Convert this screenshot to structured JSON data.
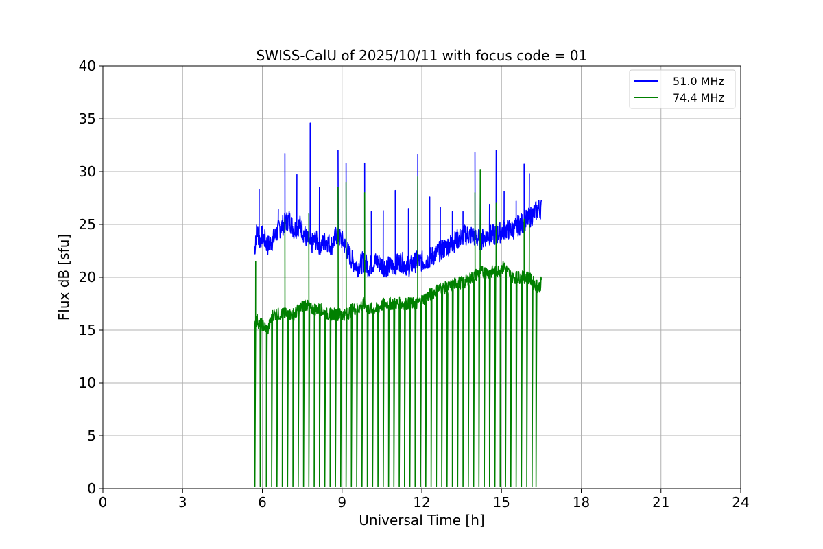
{
  "chart_data": {
    "type": "line",
    "title": "SWISS-CalU of 2025/10/11 with focus code = 01",
    "xlabel": "Universal Time [h]",
    "ylabel": "Flux dB [sfu]",
    "xlim": [
      0,
      24
    ],
    "ylim": [
      0,
      40
    ],
    "xticks": [
      0,
      3,
      6,
      9,
      12,
      15,
      18,
      21,
      24
    ],
    "yticks": [
      0,
      5,
      10,
      15,
      20,
      25,
      30,
      35,
      40
    ],
    "grid": true,
    "legend_position": "top-right",
    "series": [
      {
        "name": "51.0 MHz",
        "color": "#0000ff",
        "x": [
          5.7,
          5.8,
          5.9,
          6.0,
          6.2,
          6.4,
          6.6,
          6.8,
          7.0,
          7.2,
          7.4,
          7.6,
          7.8,
          8.0,
          8.2,
          8.4,
          8.6,
          8.8,
          9.0,
          9.2,
          9.4,
          9.6,
          9.8,
          10.0,
          10.3,
          10.6,
          10.9,
          11.2,
          11.5,
          11.8,
          12.1,
          12.4,
          12.7,
          13.0,
          13.3,
          13.6,
          13.9,
          14.2,
          14.5,
          14.8,
          15.1,
          15.4,
          15.7,
          16.0,
          16.2,
          16.4,
          16.5
        ],
        "values": [
          22.5,
          24.5,
          23.5,
          24.0,
          23.0,
          23.5,
          24.5,
          25.0,
          25.5,
          24.5,
          25.0,
          24.0,
          23.0,
          23.5,
          23.0,
          23.5,
          23.0,
          24.0,
          23.5,
          22.5,
          21.5,
          21.0,
          21.5,
          21.0,
          21.5,
          21.0,
          21.0,
          21.5,
          21.0,
          21.5,
          21.5,
          22.0,
          22.5,
          23.0,
          23.5,
          24.0,
          24.0,
          23.5,
          24.0,
          24.0,
          24.5,
          24.5,
          25.0,
          25.5,
          26.0,
          26.5,
          26.5
        ]
      },
      {
        "name": "74.4 MHz",
        "color": "#008000",
        "x": [
          5.7,
          5.8,
          5.9,
          6.0,
          6.2,
          6.4,
          6.6,
          6.8,
          7.0,
          7.2,
          7.4,
          7.6,
          7.8,
          8.0,
          8.2,
          8.4,
          8.6,
          8.8,
          9.0,
          9.2,
          9.4,
          9.6,
          9.8,
          10.0,
          10.3,
          10.6,
          10.9,
          11.2,
          11.5,
          11.8,
          12.1,
          12.4,
          12.7,
          13.0,
          13.3,
          13.6,
          13.9,
          14.2,
          14.5,
          14.8,
          15.1,
          15.4,
          15.7,
          16.0,
          16.2,
          16.4,
          16.5
        ],
        "values": [
          15.5,
          16.0,
          15.5,
          15.5,
          15.0,
          16.5,
          16.5,
          16.5,
          16.5,
          16.5,
          17.0,
          17.5,
          17.0,
          17.0,
          17.0,
          16.5,
          16.5,
          16.5,
          16.5,
          16.5,
          17.0,
          17.0,
          17.5,
          17.0,
          17.0,
          17.5,
          17.5,
          17.5,
          17.5,
          17.5,
          18.0,
          18.5,
          19.0,
          19.0,
          19.5,
          19.5,
          20.0,
          20.5,
          20.5,
          20.5,
          21.0,
          20.0,
          20.0,
          20.0,
          19.5,
          19.0,
          19.5
        ]
      }
    ],
    "spikes_51": [
      {
        "x": 5.75,
        "y": 23.9
      },
      {
        "x": 5.88,
        "y": 28.3
      },
      {
        "x": 6.6,
        "y": 26.4
      },
      {
        "x": 6.85,
        "y": 31.7
      },
      {
        "x": 7.3,
        "y": 29.7
      },
      {
        "x": 7.8,
        "y": 34.6
      },
      {
        "x": 8.15,
        "y": 28.5
      },
      {
        "x": 8.85,
        "y": 32.0
      },
      {
        "x": 9.15,
        "y": 30.8
      },
      {
        "x": 9.85,
        "y": 30.8
      },
      {
        "x": 10.1,
        "y": 26.2
      },
      {
        "x": 10.55,
        "y": 26.3
      },
      {
        "x": 11.0,
        "y": 28.2
      },
      {
        "x": 11.5,
        "y": 26.5
      },
      {
        "x": 11.85,
        "y": 31.6
      },
      {
        "x": 12.3,
        "y": 27.6
      },
      {
        "x": 12.7,
        "y": 26.6
      },
      {
        "x": 13.15,
        "y": 26.2
      },
      {
        "x": 13.55,
        "y": 26.2
      },
      {
        "x": 14.0,
        "y": 31.8
      },
      {
        "x": 14.2,
        "y": 27.8
      },
      {
        "x": 14.55,
        "y": 26.9
      },
      {
        "x": 14.8,
        "y": 32.0
      },
      {
        "x": 15.1,
        "y": 28.1
      },
      {
        "x": 15.55,
        "y": 27.2
      },
      {
        "x": 15.85,
        "y": 30.7
      },
      {
        "x": 16.05,
        "y": 29.8
      }
    ],
    "dropouts_74": [
      5.72,
      5.92,
      6.15,
      6.35,
      6.55,
      6.75,
      6.95,
      7.15,
      7.35,
      7.55,
      7.75,
      7.95,
      8.15,
      8.35,
      8.55,
      8.75,
      8.95,
      9.15,
      9.35,
      9.55,
      9.75,
      9.95,
      10.15,
      10.35,
      10.55,
      10.75,
      10.95,
      11.15,
      11.35,
      11.55,
      11.75,
      11.95,
      12.15,
      12.35,
      12.55,
      12.75,
      12.95,
      13.15,
      13.35,
      13.55,
      13.75,
      13.95,
      14.15,
      14.35,
      14.55,
      14.75,
      14.95,
      15.15,
      15.35,
      15.55,
      15.75,
      15.95,
      16.15,
      16.3
    ],
    "spikes_74": [
      {
        "x": 5.75,
        "y": 21.5
      },
      {
        "x": 6.85,
        "y": 25.5
      },
      {
        "x": 7.75,
        "y": 26.0
      },
      {
        "x": 8.85,
        "y": 28.5
      },
      {
        "x": 9.15,
        "y": 29.0
      },
      {
        "x": 9.85,
        "y": 28.0
      },
      {
        "x": 11.85,
        "y": 29.5
      },
      {
        "x": 14.0,
        "y": 28.0
      },
      {
        "x": 14.2,
        "y": 30.2
      },
      {
        "x": 14.8,
        "y": 27.0
      },
      {
        "x": 15.85,
        "y": 25.5
      },
      {
        "x": 16.05,
        "y": 25.0
      }
    ]
  }
}
